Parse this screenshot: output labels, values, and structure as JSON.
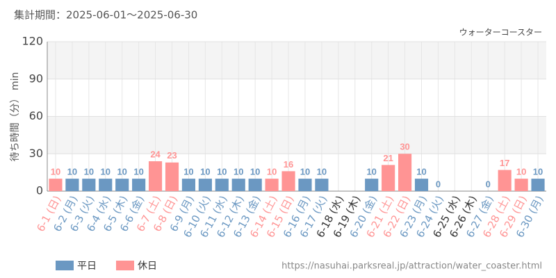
{
  "chart_data": {
    "type": "bar",
    "title": "集計期間：2025-06-01〜2025-06-30",
    "subtitle": "ウォーターコースター",
    "y_label": "待ち時間（分） min",
    "source": "https://nasuhai.parksreal.jp/attraction/water_coaster.html",
    "categories": [
      "6-1 (日)",
      "6-2 (月)",
      "6-3 (火)",
      "6-4 (水)",
      "6-5 (木)",
      "6-6 (金)",
      "6-7 (土)",
      "6-8 (日)",
      "6-9 (月)",
      "6-10 (火)",
      "6-11 (水)",
      "6-12 (木)",
      "6-13 (金)",
      "6-14 (土)",
      "6-15 (日)",
      "6-16 (月)",
      "6-17 (火)",
      "6-18 (水)",
      "6-19 (木)",
      "6-20 (金)",
      "6-21 (土)",
      "6-22 (日)",
      "6-23 (月)",
      "6-24 (火)",
      "6-25 (水)",
      "6-26 (木)",
      "6-27 (金)",
      "6-28 (土)",
      "6-29 (日)",
      "6-30 (月)"
    ],
    "series": [
      {
        "name": "平日",
        "color": "#6b98c2",
        "values": [
          null,
          10,
          10,
          10,
          10,
          10,
          null,
          null,
          10,
          10,
          10,
          10,
          10,
          null,
          null,
          10,
          10,
          null,
          null,
          10,
          null,
          null,
          10,
          0,
          null,
          null,
          0,
          null,
          null,
          10
        ]
      },
      {
        "name": "休日",
        "color": "#ff9494",
        "values": [
          10,
          null,
          null,
          null,
          null,
          null,
          24,
          23,
          null,
          null,
          null,
          null,
          null,
          10,
          16,
          null,
          null,
          null,
          null,
          null,
          21,
          30,
          null,
          null,
          null,
          null,
          null,
          17,
          10,
          null
        ]
      }
    ],
    "ylim": [
      0,
      120
    ],
    "yticks": [
      0,
      30,
      60,
      90,
      120
    ],
    "grid": true
  }
}
